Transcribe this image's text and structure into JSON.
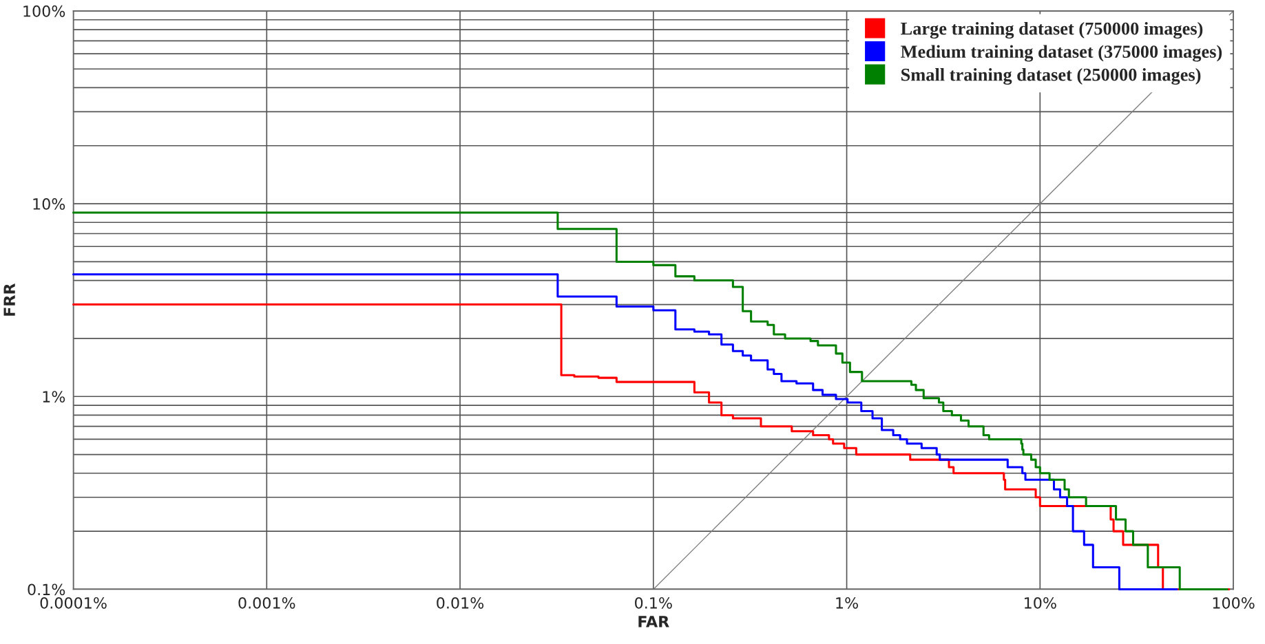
{
  "chart_data": {
    "type": "step",
    "xlabel": "FAR",
    "ylabel": "FRR",
    "log": "xy",
    "grid": true,
    "legend": "top right",
    "xlim": [
      0.0001,
      100
    ],
    "ylim": [
      0.1,
      100
    ],
    "xticks": [
      {
        "value": 0.0001,
        "label": "0.0001%"
      },
      {
        "value": 0.001,
        "label": "0.001%"
      },
      {
        "value": 0.01,
        "label": "0.01%"
      },
      {
        "value": 0.1,
        "label": "0.1%"
      },
      {
        "value": 1,
        "label": "1%"
      },
      {
        "value": 10,
        "label": "10%"
      },
      {
        "value": 100,
        "label": "100%"
      }
    ],
    "yticks": [
      {
        "value": 0.1,
        "label": "0.1%"
      },
      {
        "value": 0.2,
        "label": null
      },
      {
        "value": 0.3,
        "label": null
      },
      {
        "value": 0.4,
        "label": null
      },
      {
        "value": 0.5,
        "label": null
      },
      {
        "value": 0.6,
        "label": null
      },
      {
        "value": 0.7,
        "label": null
      },
      {
        "value": 0.8,
        "label": null
      },
      {
        "value": 0.9,
        "label": null
      },
      {
        "value": 1,
        "label": "1%"
      },
      {
        "value": 2,
        "label": null
      },
      {
        "value": 3,
        "label": null
      },
      {
        "value": 4,
        "label": null
      },
      {
        "value": 5,
        "label": null
      },
      {
        "value": 6,
        "label": null
      },
      {
        "value": 7,
        "label": null
      },
      {
        "value": 8,
        "label": null
      },
      {
        "value": 9,
        "label": null
      },
      {
        "value": 10,
        "label": "10%"
      },
      {
        "value": 20,
        "label": null
      },
      {
        "value": 30,
        "label": null
      },
      {
        "value": 40,
        "label": null
      },
      {
        "value": 50,
        "label": null
      },
      {
        "value": 60,
        "label": null
      },
      {
        "value": 70,
        "label": null
      },
      {
        "value": 80,
        "label": null
      },
      {
        "value": 90,
        "label": null
      },
      {
        "value": 100,
        "label": "100%"
      }
    ],
    "series": [
      {
        "name": "Large training dataset (750000 images)",
        "color": "#ff0000",
        "x": [
          0.0001,
          0.0334,
          0.039,
          0.052,
          0.0645,
          0.163,
          0.194,
          0.225,
          0.258,
          0.36,
          0.52,
          0.67,
          0.81,
          0.85,
          0.97,
          1.12,
          2.13,
          3.38,
          3.57,
          6.5,
          6.6,
          9.5,
          10,
          23.2,
          24,
          26.9,
          40.8,
          43.2,
          95
        ],
        "values": [
          3.0,
          1.29,
          1.27,
          1.25,
          1.19,
          1.05,
          0.93,
          0.8,
          0.77,
          0.7,
          0.66,
          0.63,
          0.6,
          0.57,
          0.54,
          0.5,
          0.47,
          0.43,
          0.4,
          0.37,
          0.33,
          0.3,
          0.27,
          0.23,
          0.2,
          0.17,
          0.13,
          0.1,
          0.1
        ]
      },
      {
        "name": "Medium training dataset (375000 images)",
        "color": "#0000ff",
        "x": [
          0.0001,
          0.032,
          0.0645,
          0.1,
          0.13,
          0.163,
          0.194,
          0.225,
          0.258,
          0.29,
          0.32,
          0.39,
          0.42,
          0.46,
          0.55,
          0.67,
          0.75,
          0.88,
          1.01,
          1.19,
          1.36,
          1.52,
          1.74,
          1.89,
          2.05,
          2.44,
          2.92,
          3.03,
          6.8,
          8.1,
          8.4,
          11.8,
          12.7,
          13.8,
          14.8,
          16.9,
          18.8,
          25.7,
          51
        ],
        "values": [
          4.3,
          3.3,
          2.93,
          2.8,
          2.23,
          2.17,
          2.1,
          1.86,
          1.72,
          1.63,
          1.54,
          1.38,
          1.31,
          1.2,
          1.17,
          1.08,
          1.02,
          0.97,
          0.93,
          0.84,
          0.77,
          0.67,
          0.63,
          0.6,
          0.57,
          0.54,
          0.5,
          0.47,
          0.43,
          0.4,
          0.37,
          0.33,
          0.3,
          0.27,
          0.2,
          0.17,
          0.13,
          0.1,
          0.1
        ]
      },
      {
        "name": "Small training dataset (250000 images)",
        "color": "#008000",
        "x": [
          0.0001,
          0.032,
          0.0645,
          0.1,
          0.13,
          0.163,
          0.258,
          0.29,
          0.32,
          0.39,
          0.42,
          0.48,
          0.65,
          0.71,
          0.88,
          0.95,
          1.04,
          1.2,
          2.16,
          2.28,
          2.5,
          3.0,
          3.16,
          3.5,
          3.9,
          4.27,
          5.1,
          5.45,
          8.0,
          8.1,
          8.2,
          9.0,
          9.5,
          10,
          11.2,
          13.4,
          14.1,
          17.3,
          24.7,
          27.7,
          30.3,
          36.1,
          52.8,
          93
        ],
        "values": [
          9,
          7.4,
          5.0,
          4.8,
          4.2,
          4.0,
          3.7,
          2.77,
          2.45,
          2.35,
          2.1,
          2.0,
          1.94,
          1.84,
          1.67,
          1.5,
          1.34,
          1.2,
          1.15,
          1.08,
          0.98,
          0.93,
          0.84,
          0.8,
          0.75,
          0.7,
          0.63,
          0.6,
          0.57,
          0.53,
          0.5,
          0.47,
          0.43,
          0.4,
          0.37,
          0.33,
          0.3,
          0.27,
          0.23,
          0.2,
          0.17,
          0.13,
          0.1,
          0.1
        ]
      },
      {
        "type": "line",
        "color": "#808080",
        "x": [
          0.1,
          100
        ],
        "values": [
          0.1,
          100
        ]
      }
    ]
  }
}
